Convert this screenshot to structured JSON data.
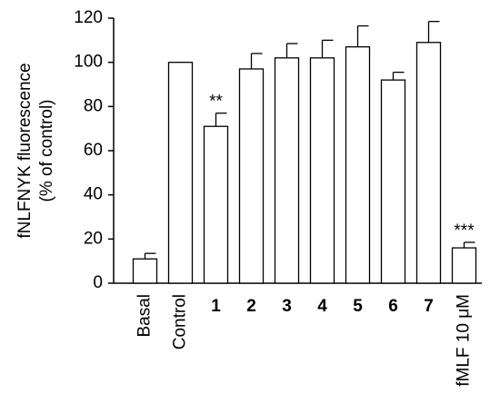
{
  "chart_data": {
    "type": "bar",
    "ylabel": [
      "fNLFNYK fluorescence",
      "(% of control)"
    ],
    "categories": [
      "Basal",
      "Control",
      "1",
      "2",
      "3",
      "4",
      "5",
      "6",
      "7",
      "fMLF 10 μM"
    ],
    "values": [
      11,
      100,
      71,
      97,
      102,
      102,
      107,
      92,
      109,
      16
    ],
    "errors": [
      2.5,
      null,
      6,
      7,
      6.5,
      8,
      9.5,
      3.5,
      9.5,
      2.5
    ],
    "annotations": [
      null,
      null,
      "**",
      null,
      null,
      null,
      null,
      null,
      null,
      "***"
    ],
    "color": "#ffffff",
    "ylim": [
      0,
      120
    ],
    "yticks": [
      0,
      20,
      40,
      60,
      80,
      100,
      120
    ]
  }
}
